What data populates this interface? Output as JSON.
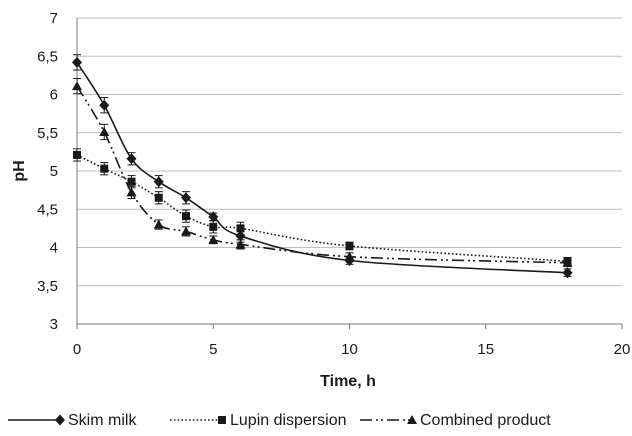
{
  "chart_data": {
    "type": "line",
    "xlabel": "Time, h",
    "ylabel": "pH",
    "xlim": [
      0,
      20
    ],
    "ylim": [
      3,
      7
    ],
    "xticks": [
      0,
      5,
      10,
      15,
      20
    ],
    "yticks": [
      3,
      3.5,
      4,
      4.5,
      5,
      5.5,
      6,
      6.5,
      7
    ],
    "xtick_labels": [
      "0",
      "5",
      "10",
      "15",
      "20"
    ],
    "ytick_labels": [
      "3",
      "3,5",
      "4",
      "4,5",
      "5",
      "5,5",
      "6",
      "6,5",
      "7"
    ],
    "grid": "horizontal",
    "legend_position": "bottom",
    "series": [
      {
        "name": "Skim milk",
        "marker": "diamond",
        "line_style": "solid",
        "color": "#1a1a1a",
        "x": [
          0,
          1,
          2,
          3,
          4,
          5,
          6,
          10,
          18
        ],
        "y": [
          6.42,
          5.86,
          5.16,
          4.86,
          4.65,
          4.4,
          4.15,
          3.83,
          3.67
        ],
        "error": [
          0.1,
          0.1,
          0.08,
          0.08,
          0.08,
          0.05,
          0.08,
          0.05,
          0.05
        ]
      },
      {
        "name": "Lupin dispersion",
        "marker": "square",
        "line_style": "dotted",
        "color": "#1a1a1a",
        "x": [
          0,
          1,
          2,
          3,
          4,
          5,
          6,
          10,
          18
        ],
        "y": [
          5.21,
          5.03,
          4.86,
          4.65,
          4.41,
          4.27,
          4.25,
          4.02,
          3.82
        ],
        "error": [
          0.08,
          0.08,
          0.08,
          0.08,
          0.08,
          0.08,
          0.08,
          0.05,
          0.05
        ]
      },
      {
        "name": "Combined product",
        "marker": "triangle",
        "line_style": "dash-dot-dot",
        "color": "#1a1a1a",
        "x": [
          0,
          1,
          2,
          3,
          4,
          5,
          6,
          10,
          18
        ],
        "y": [
          6.11,
          5.51,
          4.72,
          4.3,
          4.21,
          4.1,
          4.04,
          3.88,
          3.8
        ],
        "error": [
          0.1,
          0.1,
          0.08,
          0.06,
          0.06,
          0.05,
          0.06,
          0.05,
          0.05
        ]
      }
    ]
  }
}
